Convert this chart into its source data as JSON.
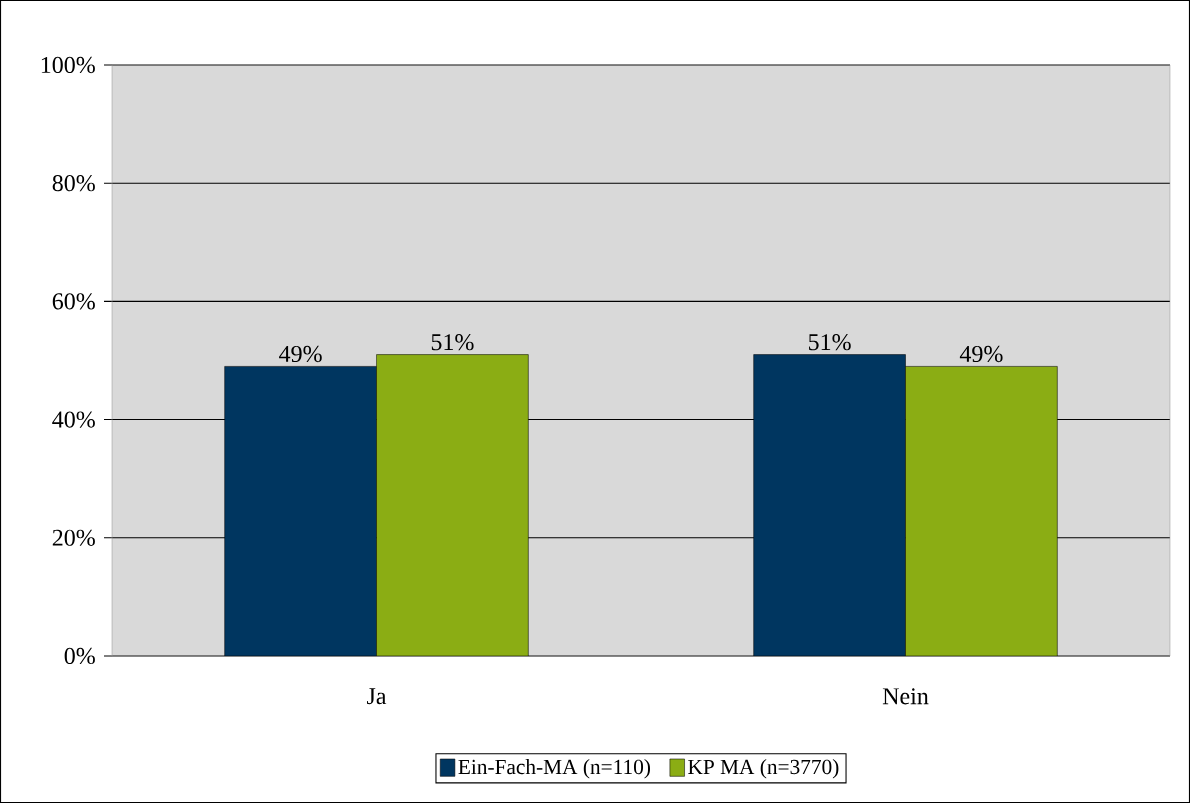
{
  "chart_data": {
    "type": "bar",
    "categories": [
      "Ja",
      "Nein"
    ],
    "series": [
      {
        "name": "Ein-Fach-MA (n=110)",
        "color": "#003660",
        "values": [
          49,
          51
        ],
        "value_labels": [
          "49%",
          "51%"
        ]
      },
      {
        "name": "KP MA (n=3770)",
        "color": "#8bad14",
        "values": [
          51,
          49
        ],
        "value_labels": [
          "51%",
          "49%"
        ]
      }
    ],
    "ylim": [
      0,
      100
    ],
    "yticks": [
      {
        "value": 0,
        "label": "0%"
      },
      {
        "value": 20,
        "label": "20%"
      },
      {
        "value": 40,
        "label": "40%"
      },
      {
        "value": 60,
        "label": "60%"
      },
      {
        "value": 80,
        "label": "80%"
      },
      {
        "value": 100,
        "label": "100%"
      }
    ],
    "grid": "y",
    "legend": "bottom"
  }
}
